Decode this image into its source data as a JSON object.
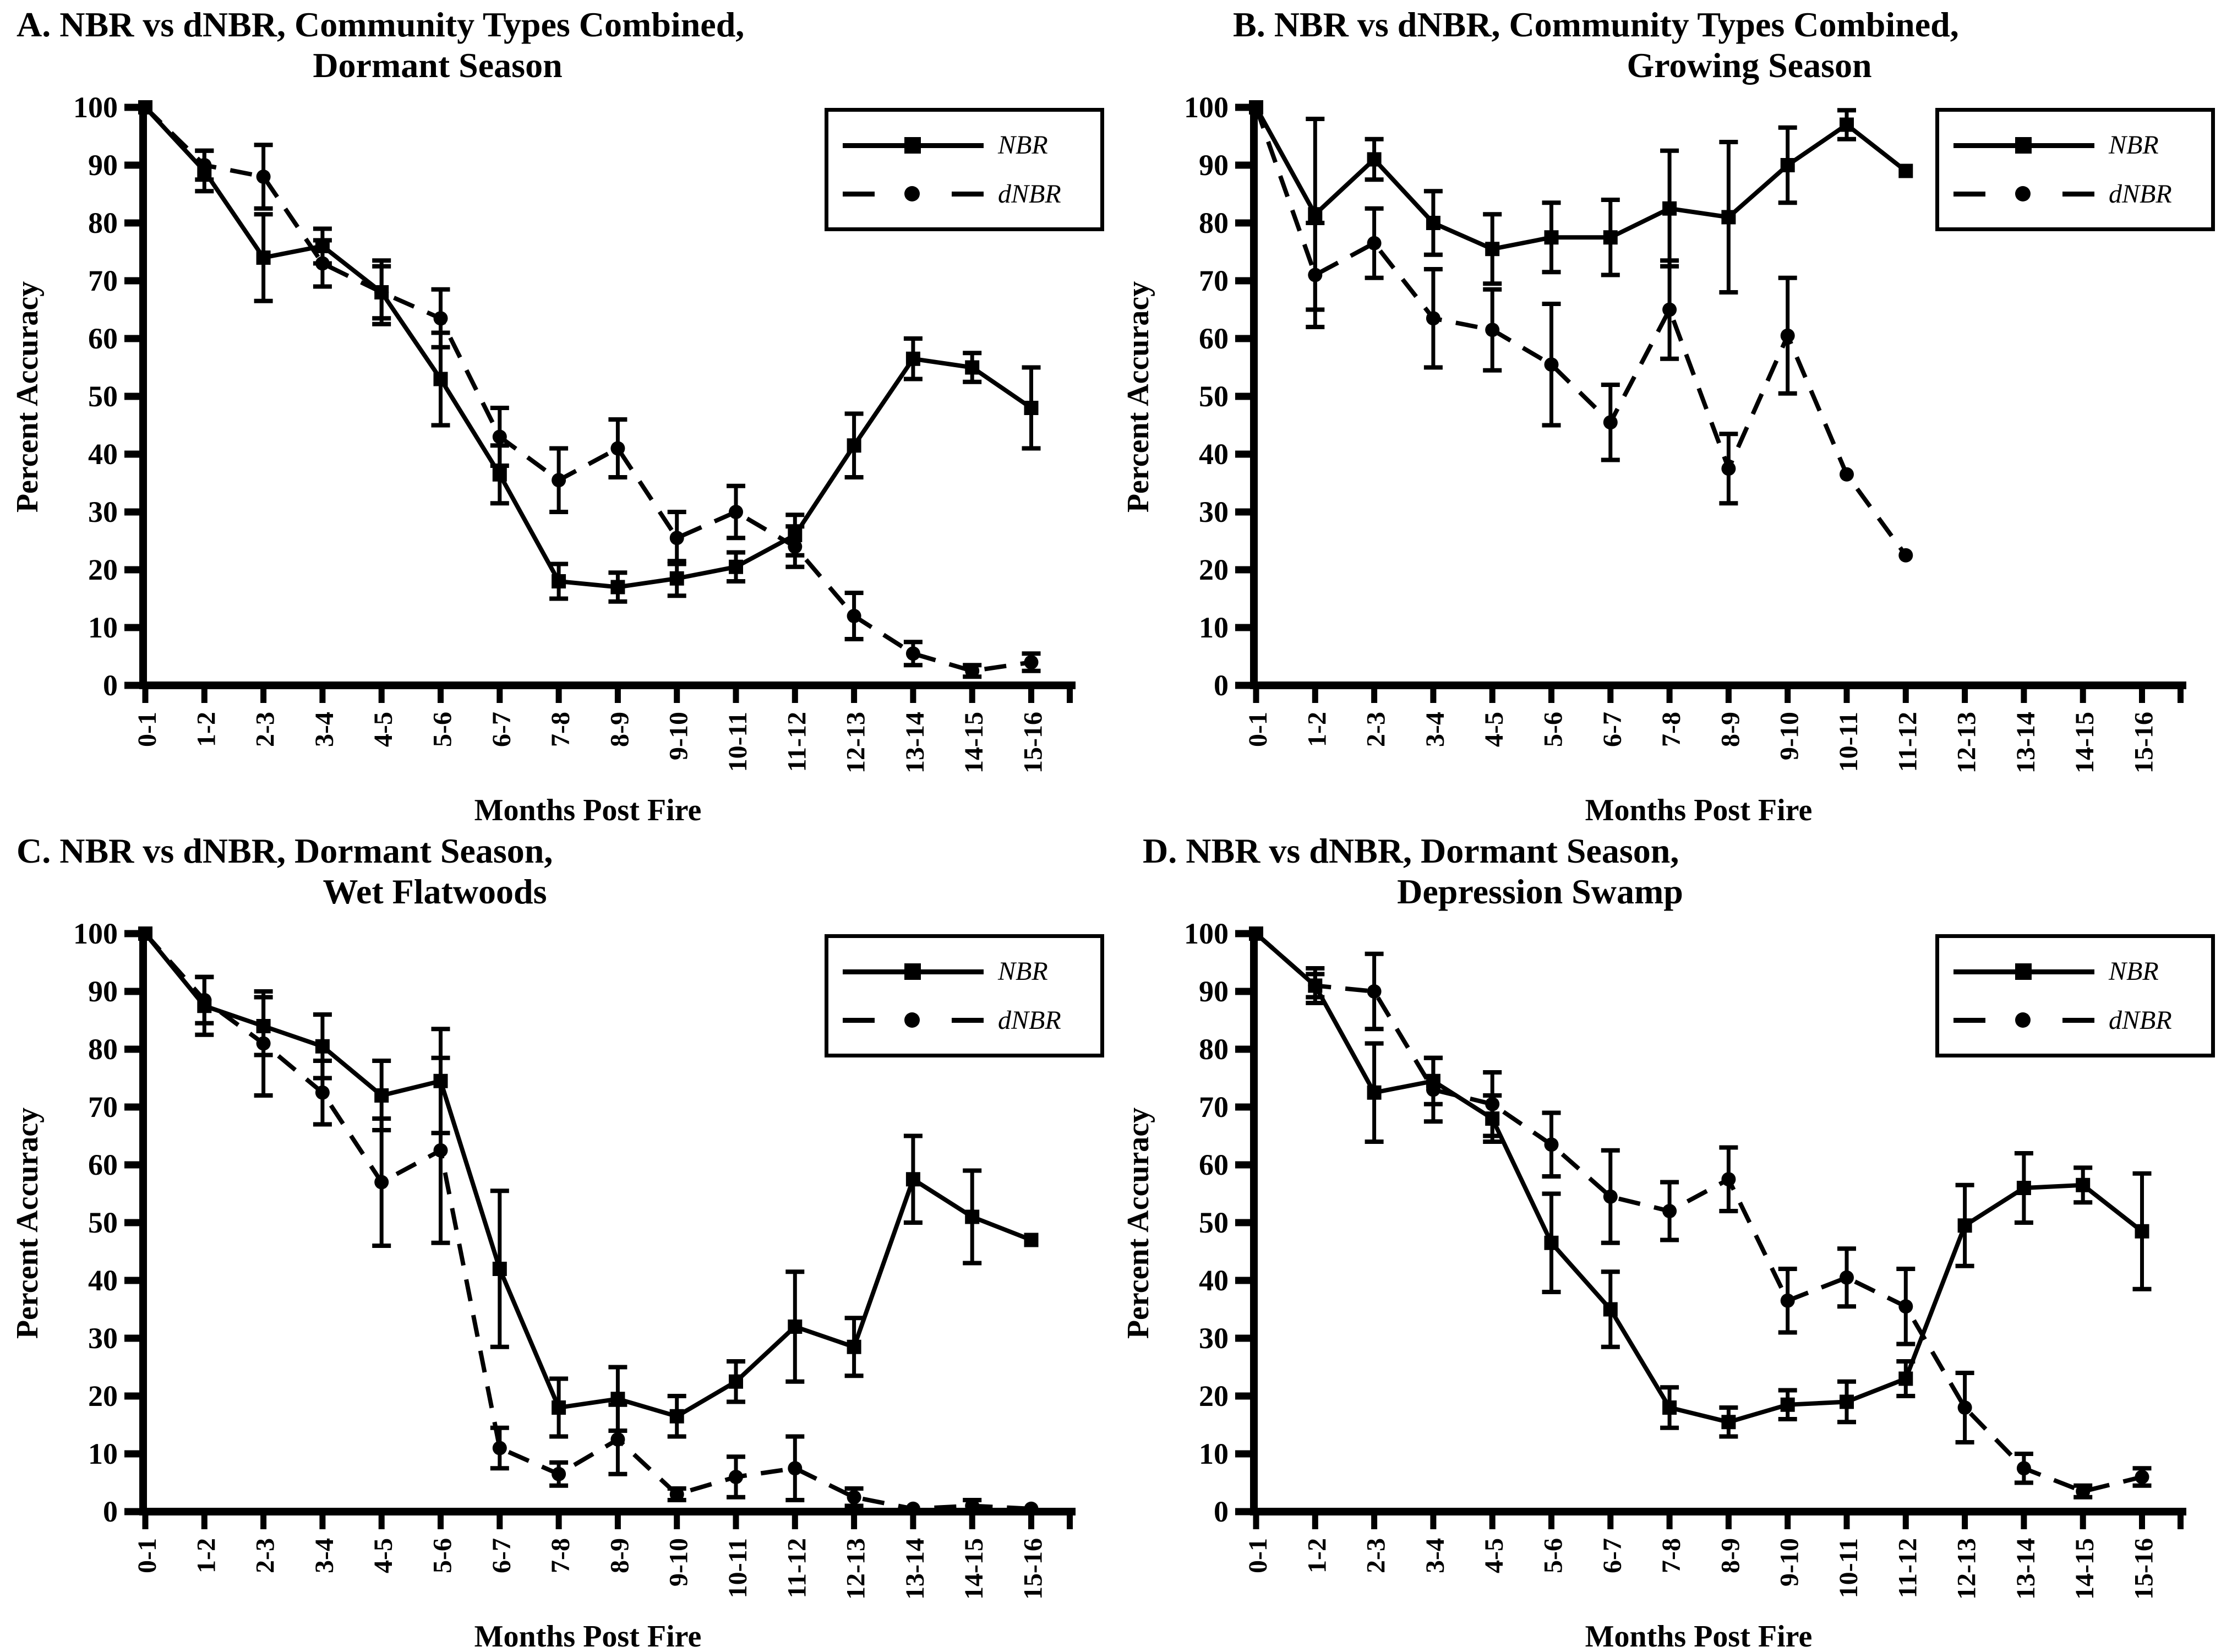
{
  "figure": {
    "background": "#ffffff",
    "ink": "#000000",
    "layout": "2x2 panels"
  },
  "chart_data": [
    {
      "panel": "A",
      "type": "line",
      "title_line1": "A. NBR vs dNBR, Community Types Combined,",
      "title_line2": "Dormant Season",
      "xlabel": "Months Post Fire",
      "ylabel": "Percent Accuracy",
      "ylim": [
        0,
        100
      ],
      "yticks": [
        0,
        10,
        20,
        30,
        40,
        50,
        60,
        70,
        80,
        90,
        100
      ],
      "categories": [
        "0-1",
        "1-2",
        "2-3",
        "3-4",
        "4-5",
        "5-6",
        "6-7",
        "7-8",
        "8-9",
        "9-10",
        "10-11",
        "11-12",
        "12-13",
        "13-14",
        "14-15",
        "15-16"
      ],
      "grid": false,
      "legend_position": "top-right",
      "series": [
        {
          "name": "NBR",
          "line": "solid",
          "marker": "square",
          "values": [
            100,
            89,
            74,
            76,
            68,
            53,
            36.5,
            18,
            17,
            18.5,
            20.5,
            26,
            41.5,
            56.5,
            55,
            48
          ],
          "errors": [
            null,
            3.5,
            7.5,
            3,
            5.5,
            8,
            5,
            3,
            2.5,
            3,
            2.5,
            3.5,
            5.5,
            3.5,
            2.5,
            7
          ]
        },
        {
          "name": "dNBR",
          "line": "dashed",
          "marker": "circle",
          "values": [
            100,
            90,
            88,
            73,
            68,
            63.5,
            43,
            35.5,
            41,
            25.5,
            30,
            24,
            12,
            5.5,
            2.5,
            4
          ],
          "errors": [
            null,
            2.5,
            5.5,
            4,
            4.5,
            5,
            5,
            5.5,
            5,
            4.5,
            4.5,
            3.5,
            4,
            2,
            1,
            1.5
          ]
        }
      ]
    },
    {
      "panel": "B",
      "type": "line",
      "title_line1": "B. NBR vs dNBR, Community Types Combined,",
      "title_line2": "Growing Season",
      "xlabel": "Months Post Fire",
      "ylabel": "Percent Accuracy",
      "ylim": [
        0,
        100
      ],
      "yticks": [
        0,
        10,
        20,
        30,
        40,
        50,
        60,
        70,
        80,
        90,
        100
      ],
      "categories": [
        "0-1",
        "1-2",
        "2-3",
        "3-4",
        "4-5",
        "5-6",
        "6-7",
        "7-8",
        "8-9",
        "9-10",
        "10-11",
        "11-12",
        "12-13",
        "13-14",
        "14-15",
        "15-16"
      ],
      "grid": false,
      "legend_position": "top-right",
      "series": [
        {
          "name": "NBR",
          "line": "solid",
          "marker": "square",
          "values": [
            100,
            81.5,
            91,
            80,
            75.5,
            77.5,
            77.5,
            82.5,
            81,
            90,
            97,
            89,
            null,
            null,
            null,
            null
          ],
          "errors": [
            null,
            16.5,
            3.5,
            5.5,
            6,
            6,
            6.5,
            10,
            13,
            6.5,
            2.5,
            null,
            null,
            null,
            null,
            null
          ]
        },
        {
          "name": "dNBR",
          "line": "dashed",
          "marker": "circle",
          "values": [
            100,
            71,
            76.5,
            63.5,
            61.5,
            55.5,
            45.5,
            65,
            37.5,
            60.5,
            36.5,
            22.5,
            null,
            null,
            null,
            null
          ],
          "errors": [
            null,
            9,
            6,
            8.5,
            7,
            10.5,
            6.5,
            8.5,
            6,
            10,
            null,
            null,
            null,
            null,
            null,
            null
          ]
        }
      ]
    },
    {
      "panel": "C",
      "type": "line",
      "title_line1": "C. NBR vs dNBR, Dormant Season,",
      "title_line2": "Wet Flatwoods",
      "xlabel": "Months Post Fire",
      "ylabel": "Percent Accuracy",
      "ylim": [
        0,
        100
      ],
      "yticks": [
        0,
        10,
        20,
        30,
        40,
        50,
        60,
        70,
        80,
        90,
        100
      ],
      "categories": [
        "0-1",
        "1-2",
        "2-3",
        "3-4",
        "4-5",
        "5-6",
        "6-7",
        "7-8",
        "8-9",
        "9-10",
        "10-11",
        "11-12",
        "12-13",
        "13-14",
        "14-15",
        "15-16"
      ],
      "grid": false,
      "legend_position": "top-right",
      "series": [
        {
          "name": "NBR",
          "line": "solid",
          "marker": "square",
          "values": [
            100,
            87.5,
            84,
            80.5,
            72,
            74.5,
            42,
            18,
            19.5,
            16.5,
            22.5,
            32,
            28.5,
            57.5,
            51,
            47
          ],
          "errors": [
            null,
            5,
            5,
            5.5,
            6,
            9,
            13.5,
            5,
            5.5,
            3.5,
            3.5,
            9.5,
            5,
            7.5,
            8,
            null
          ]
        },
        {
          "name": "dNBR",
          "line": "dashed",
          "marker": "circle",
          "values": [
            100,
            88.5,
            81,
            72.5,
            57,
            62.5,
            11,
            6.5,
            12.5,
            3,
            6,
            7.5,
            2.5,
            0.5,
            1,
            0.5
          ],
          "errors": [
            null,
            4,
            9,
            5.5,
            11,
            16,
            3.5,
            2,
            6,
            1,
            3.5,
            5.5,
            1.5,
            null,
            1,
            null
          ]
        }
      ]
    },
    {
      "panel": "D",
      "type": "line",
      "title_line1": "D. NBR vs dNBR, Dormant Season,",
      "title_line2": "Depression Swamp",
      "xlabel": "Months Post Fire",
      "ylabel": "Percent Accuracy",
      "ylim": [
        0,
        100
      ],
      "yticks": [
        0,
        10,
        20,
        30,
        40,
        50,
        60,
        70,
        80,
        90,
        100
      ],
      "categories": [
        "0-1",
        "1-2",
        "2-3",
        "3-4",
        "4-5",
        "5-6",
        "6-7",
        "7-8",
        "8-9",
        "9-10",
        "10-11",
        "11-12",
        "12-13",
        "13-14",
        "14-15",
        "15-16"
      ],
      "grid": false,
      "legend_position": "top-right",
      "series": [
        {
          "name": "NBR",
          "line": "solid",
          "marker": "square",
          "values": [
            100,
            91,
            72.5,
            74.5,
            68,
            46.5,
            35,
            18,
            15.5,
            18.5,
            19,
            23,
            49.5,
            56,
            56.5,
            48.5
          ],
          "errors": [
            null,
            3,
            8.5,
            4,
            4,
            8.5,
            6.5,
            3.5,
            2.5,
            2.5,
            3.5,
            3,
            7,
            6,
            3,
            10
          ]
        },
        {
          "name": "dNBR",
          "line": "dashed",
          "marker": "circle",
          "values": [
            100,
            91,
            90,
            73,
            70.5,
            63.5,
            54.5,
            52,
            57.5,
            36.5,
            40.5,
            35.5,
            18,
            7.5,
            3.5,
            6
          ],
          "errors": [
            null,
            2,
            6.5,
            5.5,
            5.5,
            5.5,
            8,
            5,
            5.5,
            5.5,
            5,
            6.5,
            6,
            2.5,
            1,
            1.5
          ]
        }
      ]
    }
  ]
}
